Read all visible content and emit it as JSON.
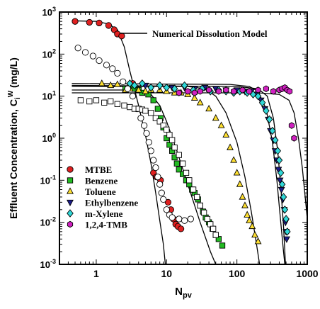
{
  "chart_data": {
    "type": "scatter",
    "xlabel_main": "N",
    "xlabel_sub": "pv",
    "ylabel_main": "Effluent Concentration, C",
    "ylabel_sub": "i",
    "ylabel_sup": "W",
    "ylabel_unit": " (mg/L)",
    "x_scale": "log",
    "y_scale": "log",
    "xlim": [
      0.3,
      1000
    ],
    "ylim": [
      0.001,
      1000
    ],
    "x_ticks": [
      {
        "value": 1,
        "label": "1"
      },
      {
        "value": 10,
        "label": "10"
      },
      {
        "value": 100,
        "label": "100"
      },
      {
        "value": 1000,
        "label": "1000"
      }
    ],
    "y_ticks": [
      {
        "value": 0.001,
        "base": "10",
        "exp": "-3"
      },
      {
        "value": 0.01,
        "base": "10",
        "exp": "-2"
      },
      {
        "value": 0.1,
        "base": "10",
        "exp": "-1"
      },
      {
        "value": 1,
        "base": "10",
        "exp": "0"
      },
      {
        "value": 10,
        "base": "10",
        "exp": "1"
      },
      {
        "value": 100,
        "base": "10",
        "exp": "2"
      },
      {
        "value": 1000,
        "base": "10",
        "exp": "3"
      }
    ],
    "model_legend": "Numerical Dissolution Model",
    "legend_position": "bottom-left",
    "series": [
      {
        "name": "MTBE",
        "marker": "circle",
        "color": "#e02020",
        "points": [
          [
            0.5,
            600
          ],
          [
            0.8,
            570
          ],
          [
            1.1,
            550
          ],
          [
            1.5,
            480
          ],
          [
            1.8,
            380
          ],
          [
            2.0,
            300
          ],
          [
            2.3,
            270
          ],
          [
            3.3,
            20
          ],
          [
            6.5,
            0.15
          ],
          [
            7.2,
            0.12
          ],
          [
            8.2,
            0.1
          ],
          [
            10.5,
            0.03
          ],
          [
            11.5,
            0.02
          ],
          [
            12.5,
            0.012
          ],
          [
            13.5,
            0.009
          ],
          [
            14.5,
            0.008
          ],
          [
            16,
            0.007
          ]
        ]
      },
      {
        "name": "Benzene",
        "marker": "square",
        "color": "#22bb22",
        "points": [
          [
            2.6,
            15
          ],
          [
            3.0,
            16
          ],
          [
            3.5,
            15
          ],
          [
            4.0,
            14
          ],
          [
            4.5,
            12
          ],
          [
            5.5,
            11
          ],
          [
            6.5,
            8
          ],
          [
            7.5,
            5
          ],
          [
            8.2,
            3
          ],
          [
            9.0,
            1.8
          ],
          [
            10,
            1
          ],
          [
            11,
            0.7
          ],
          [
            12,
            0.5
          ],
          [
            13,
            0.35
          ],
          [
            14,
            0.25
          ],
          [
            15,
            0.18
          ],
          [
            17,
            0.14
          ],
          [
            19,
            0.1
          ],
          [
            21,
            0.08
          ],
          [
            23,
            0.06
          ],
          [
            25,
            0.05
          ],
          [
            28,
            0.035
          ],
          [
            30,
            0.025
          ],
          [
            33,
            0.018
          ],
          [
            36,
            0.013
          ],
          [
            40,
            0.01
          ],
          [
            45,
            0.007
          ],
          [
            50,
            0.005
          ],
          [
            55,
            0.004
          ],
          [
            62,
            0.0028
          ]
        ]
      },
      {
        "name": "Toluene",
        "marker": "triangle-up",
        "color": "#ffe030",
        "points": [
          [
            1.2,
            20
          ],
          [
            1.6,
            18
          ],
          [
            2.0,
            19
          ],
          [
            2.6,
            14
          ],
          [
            3.0,
            15
          ],
          [
            4,
            14
          ],
          [
            5,
            13
          ],
          [
            6,
            14
          ],
          [
            8,
            14
          ],
          [
            10,
            13
          ],
          [
            13,
            12
          ],
          [
            16,
            12
          ],
          [
            20,
            11
          ],
          [
            25,
            9
          ],
          [
            30,
            7
          ],
          [
            40,
            5
          ],
          [
            50,
            3
          ],
          [
            60,
            2
          ],
          [
            70,
            1.2
          ],
          [
            80,
            0.6
          ],
          [
            90,
            0.3
          ],
          [
            100,
            0.15
          ],
          [
            110,
            0.08
          ],
          [
            120,
            0.04
          ],
          [
            130,
            0.025
          ],
          [
            140,
            0.015
          ],
          [
            150,
            0.011
          ],
          [
            165,
            0.008
          ],
          [
            180,
            0.005
          ],
          [
            200,
            0.0035
          ]
        ]
      },
      {
        "name": "Ethylbenzene",
        "marker": "triangle-down",
        "color": "#1c1c8c",
        "points": [
          [
            5,
            18
          ],
          [
            8,
            17
          ],
          [
            12,
            16
          ],
          [
            18,
            16
          ],
          [
            25,
            15
          ],
          [
            35,
            16
          ],
          [
            50,
            15
          ],
          [
            70,
            14
          ],
          [
            100,
            14
          ],
          [
            130,
            13
          ],
          [
            160,
            13
          ],
          [
            190,
            11
          ],
          [
            220,
            8
          ],
          [
            250,
            5
          ],
          [
            280,
            2.8
          ],
          [
            300,
            1.5
          ],
          [
            330,
            0.9
          ],
          [
            350,
            0.5
          ],
          [
            370,
            0.3
          ],
          [
            390,
            0.18
          ],
          [
            410,
            0.1
          ],
          [
            430,
            0.06
          ],
          [
            450,
            0.035
          ],
          [
            470,
            0.02
          ],
          [
            490,
            0.01
          ],
          [
            500,
            0.006
          ],
          [
            510,
            0.004
          ]
        ]
      },
      {
        "name": "m-Xylene",
        "marker": "diamond",
        "color": "#30d8d8",
        "points": [
          [
            3,
            20
          ],
          [
            3.5,
            18
          ],
          [
            4.5,
            20
          ],
          [
            6,
            16
          ],
          [
            8,
            18
          ],
          [
            10,
            16
          ],
          [
            13,
            15
          ],
          [
            18,
            18
          ],
          [
            24,
            14
          ],
          [
            32,
            15
          ],
          [
            42,
            13
          ],
          [
            55,
            14
          ],
          [
            70,
            13
          ],
          [
            90,
            12
          ],
          [
            110,
            13
          ],
          [
            140,
            12
          ],
          [
            170,
            11
          ],
          [
            200,
            10
          ],
          [
            230,
            7
          ],
          [
            260,
            4.5
          ],
          [
            290,
            2.8
          ],
          [
            320,
            1.5
          ],
          [
            350,
            0.9
          ],
          [
            380,
            0.5
          ],
          [
            400,
            0.3
          ],
          [
            420,
            0.15
          ],
          [
            440,
            0.08
          ],
          [
            460,
            0.04
          ],
          [
            480,
            0.02
          ],
          [
            500,
            0.012
          ],
          [
            520,
            0.006
          ]
        ]
      },
      {
        "name": "1,2,4-TMB",
        "marker": "hexagon",
        "color": "#d020c0",
        "points": [
          [
            15,
            12
          ],
          [
            20,
            13
          ],
          [
            25,
            12
          ],
          [
            30,
            13
          ],
          [
            40,
            14
          ],
          [
            55,
            13
          ],
          [
            70,
            14
          ],
          [
            90,
            13
          ],
          [
            120,
            14
          ],
          [
            150,
            13
          ],
          [
            200,
            14
          ],
          [
            260,
            15
          ],
          [
            330,
            13
          ],
          [
            400,
            14
          ],
          [
            440,
            15
          ],
          [
            480,
            16
          ],
          [
            520,
            14
          ],
          [
            560,
            13
          ],
          [
            600,
            2
          ],
          [
            650,
            1
          ]
        ]
      },
      {
        "name": "",
        "marker": "open-circle",
        "color": "#000000",
        "points": [
          [
            0.55,
            140
          ],
          [
            0.7,
            110
          ],
          [
            0.9,
            90
          ],
          [
            1.1,
            70
          ],
          [
            1.4,
            55
          ],
          [
            1.7,
            45
          ],
          [
            2.0,
            35
          ],
          [
            2.4,
            22
          ],
          [
            2.8,
            15
          ],
          [
            3.3,
            10
          ],
          [
            3.8,
            5
          ],
          [
            4.3,
            3
          ],
          [
            4.8,
            2
          ],
          [
            5.2,
            1.3
          ],
          [
            5.6,
            0.8
          ],
          [
            6.0,
            0.5
          ],
          [
            6.5,
            0.3
          ],
          [
            7.0,
            0.2
          ],
          [
            7.5,
            0.12
          ],
          [
            8.0,
            0.08
          ],
          [
            8.5,
            0.05
          ],
          [
            9,
            0.035
          ],
          [
            10,
            0.02
          ],
          [
            11,
            0.015
          ],
          [
            12,
            0.013
          ],
          [
            15,
            0.012
          ],
          [
            18,
            0.011
          ],
          [
            22,
            0.012
          ]
        ]
      },
      {
        "name": "",
        "marker": "open-square",
        "color": "#000000",
        "points": [
          [
            0.6,
            8
          ],
          [
            0.8,
            7.5
          ],
          [
            1.0,
            8
          ],
          [
            1.3,
            7
          ],
          [
            1.6,
            7.5
          ],
          [
            2.0,
            6.5
          ],
          [
            2.5,
            6
          ],
          [
            3,
            5.5
          ],
          [
            3.5,
            5
          ],
          [
            4,
            5
          ],
          [
            4.5,
            4.8
          ],
          [
            5,
            4.5
          ],
          [
            6,
            4
          ],
          [
            7,
            3
          ],
          [
            8,
            2.5
          ],
          [
            9,
            2
          ],
          [
            10,
            1.6
          ],
          [
            11,
            1.2
          ],
          [
            12,
            0.9
          ],
          [
            13,
            0.6
          ],
          [
            15,
            0.4
          ],
          [
            17,
            0.25
          ],
          [
            19,
            0.15
          ],
          [
            21,
            0.1
          ],
          [
            24,
            0.06
          ],
          [
            27,
            0.04
          ],
          [
            30,
            0.025
          ],
          [
            34,
            0.017
          ],
          [
            38,
            0.012
          ],
          [
            42,
            0.009
          ],
          [
            46,
            0.007
          ],
          [
            50,
            0.005
          ]
        ]
      }
    ],
    "model_curves": [
      {
        "series": "MTBE",
        "points": [
          [
            0.45,
            620
          ],
          [
            1.0,
            600
          ],
          [
            1.5,
            520
          ],
          [
            2.0,
            380
          ],
          [
            2.5,
            150
          ],
          [
            3.0,
            40
          ],
          [
            4.0,
            6
          ],
          [
            5.0,
            1.2
          ],
          [
            6.0,
            0.25
          ],
          [
            7.0,
            0.05
          ],
          [
            8.0,
            0.011
          ],
          [
            9.0,
            0.003
          ],
          [
            9.6,
            0.001
          ]
        ]
      },
      {
        "series": "Benzene",
        "points": [
          [
            0.45,
            14
          ],
          [
            3.0,
            14
          ],
          [
            4.5,
            13
          ],
          [
            6,
            11
          ],
          [
            8,
            6
          ],
          [
            10,
            2.5
          ],
          [
            14,
            0.5
          ],
          [
            20,
            0.08
          ],
          [
            30,
            0.01
          ],
          [
            42,
            0.002
          ],
          [
            50,
            0.001
          ]
        ]
      },
      {
        "series": "Toluene",
        "points": [
          [
            0.45,
            17
          ],
          [
            20,
            17
          ],
          [
            35,
            15
          ],
          [
            50,
            10
          ],
          [
            70,
            4
          ],
          [
            100,
            0.8
          ],
          [
            130,
            0.12
          ],
          [
            160,
            0.018
          ],
          [
            190,
            0.003
          ],
          [
            210,
            0.001
          ]
        ]
      },
      {
        "series": "Ethylbenzene",
        "points": [
          [
            0.45,
            20
          ],
          [
            80,
            19
          ],
          [
            150,
            17
          ],
          [
            200,
            13
          ],
          [
            260,
            5
          ],
          [
            320,
            0.8
          ],
          [
            370,
            0.1
          ],
          [
            420,
            0.01
          ],
          [
            460,
            0.002
          ],
          [
            480,
            0.001
          ]
        ]
      },
      {
        "series": "m-Xylene",
        "points": [
          [
            0.45,
            18
          ],
          [
            100,
            17
          ],
          [
            200,
            15
          ],
          [
            270,
            10
          ],
          [
            330,
            3
          ],
          [
            380,
            0.5
          ],
          [
            420,
            0.07
          ],
          [
            460,
            0.008
          ],
          [
            480,
            0.002
          ],
          [
            490,
            0.001
          ]
        ]
      },
      {
        "series": "1,2,4-TMB",
        "points": [
          [
            0.45,
            12
          ],
          [
            200,
            12
          ],
          [
            400,
            11
          ],
          [
            550,
            8
          ],
          [
            650,
            4
          ],
          [
            750,
            1
          ],
          [
            850,
            0.2
          ],
          [
            950,
            0.03
          ],
          [
            1000,
            0.012
          ]
        ]
      }
    ]
  }
}
